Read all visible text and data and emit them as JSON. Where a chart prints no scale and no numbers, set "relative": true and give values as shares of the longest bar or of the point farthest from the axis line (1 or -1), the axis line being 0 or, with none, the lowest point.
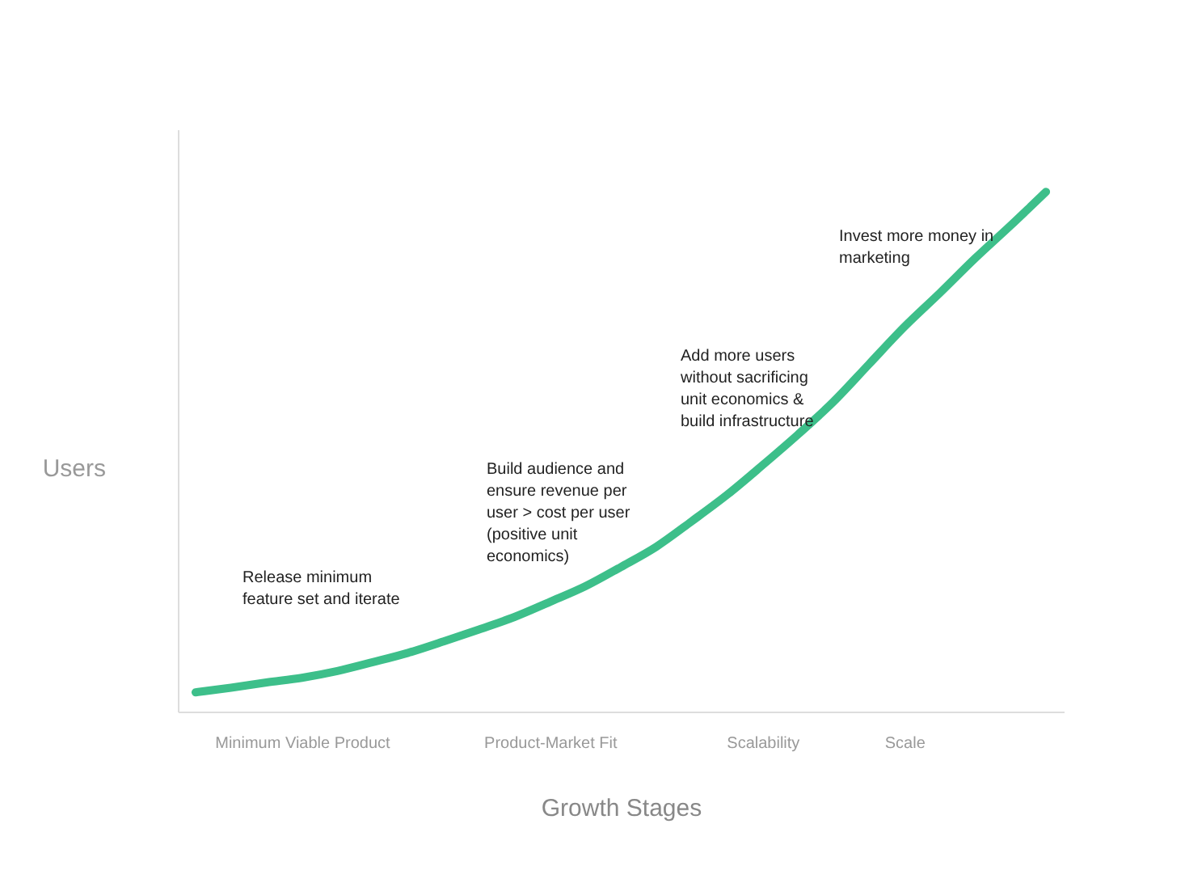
{
  "chart_data": {
    "type": "line",
    "relative": true,
    "xlabel": "Growth Stages",
    "ylabel": "Users",
    "categories": [
      null,
      null,
      null,
      "Minimum Viable Product",
      null,
      null,
      null,
      null,
      null,
      null,
      "Product-Market Fit",
      null,
      null,
      null,
      null,
      null,
      "Scalability",
      null,
      null,
      null,
      "Scale",
      null,
      null,
      null,
      null
    ],
    "series": [
      {
        "color": "#3dbf8a",
        "values": [
          0.037,
          0.046,
          0.056,
          0.065,
          0.078,
          0.095,
          0.113,
          0.135,
          0.158,
          0.182,
          0.211,
          0.241,
          0.278,
          0.317,
          0.366,
          0.417,
          0.474,
          0.533,
          0.596,
          0.668,
          0.74,
          0.805,
          0.872,
          0.935,
          1.0
        ]
      }
    ],
    "annotations": [
      "Release minimum\nfeature set and iterate",
      "Build audience and\nensure revenue per\nuser > cost per user\n(positive unit\neconomics)",
      "Add more users\nwithout sacrificing\nunit economics &\nbuild infrastructure",
      "Invest more money in\nmarketing"
    ],
    "grid": false,
    "legend": false
  }
}
